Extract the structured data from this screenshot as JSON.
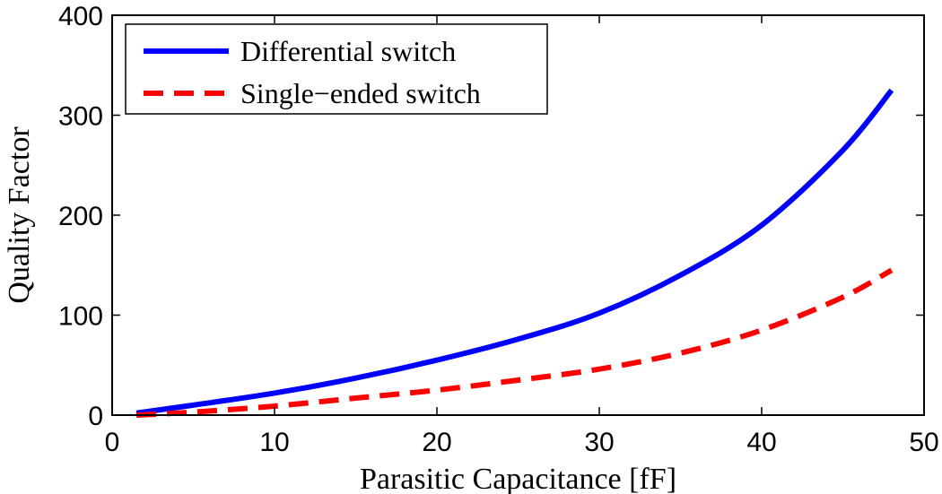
{
  "chart_data": {
    "type": "line",
    "xlabel": "Parasitic Capacitance [fF]",
    "ylabel": "Quality Factor",
    "xlim": [
      0,
      50
    ],
    "ylim": [
      0,
      400
    ],
    "xticks": [
      0,
      10,
      20,
      30,
      40,
      50
    ],
    "yticks": [
      0,
      100,
      200,
      300,
      400
    ],
    "xtick_labels": [
      "0",
      "10",
      "20",
      "30",
      "40",
      "50"
    ],
    "ytick_labels": [
      "0",
      "100",
      "200",
      "300",
      "400"
    ],
    "grid": false,
    "legend_position": "top-left",
    "series": [
      {
        "name": "Differential switch",
        "color": "#0000ff",
        "style": "solid",
        "x": [
          1.5,
          5,
          10,
          15,
          20,
          25,
          30,
          35,
          40,
          45,
          48
        ],
        "y": [
          2,
          10,
          22,
          37,
          55,
          76,
          102,
          140,
          190,
          265,
          325
        ]
      },
      {
        "name": "Single−ended switch",
        "color": "#ff0000",
        "style": "dashed",
        "x": [
          1.5,
          5,
          10,
          15,
          20,
          25,
          30,
          35,
          40,
          45,
          48
        ],
        "y": [
          0,
          3,
          9,
          17,
          25,
          35,
          46,
          62,
          85,
          118,
          145
        ]
      }
    ]
  }
}
